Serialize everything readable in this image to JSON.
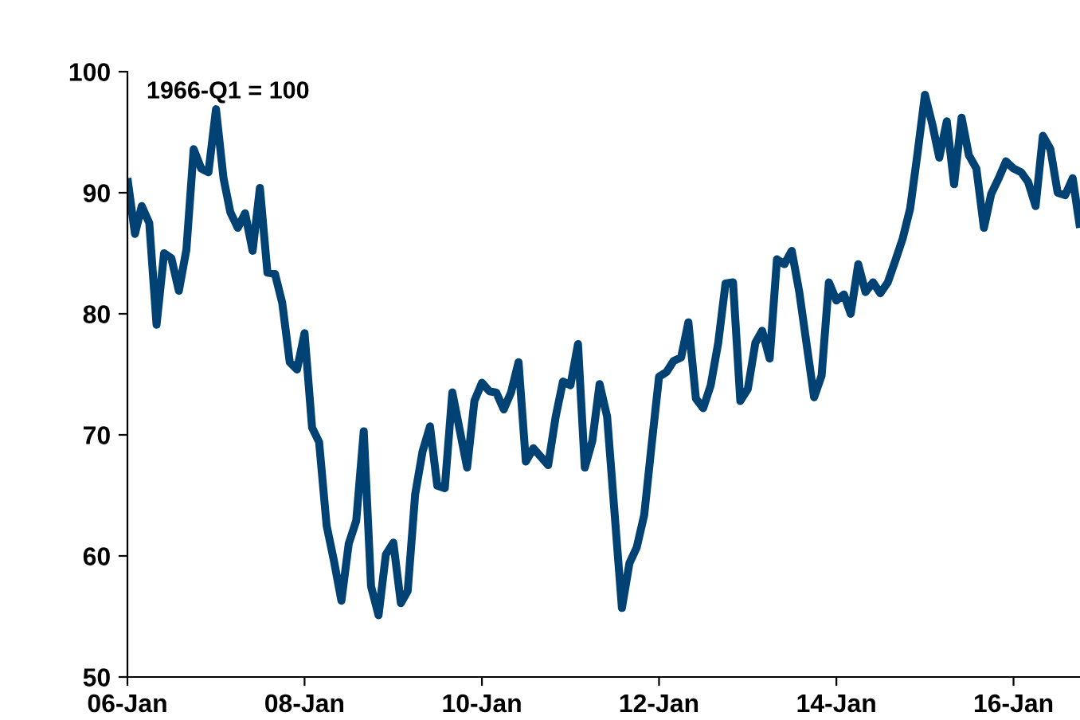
{
  "chart_data": {
    "type": "line",
    "annotations": [
      "1966-Q1 = 100"
    ],
    "x": [
      "2006-01",
      "2006-02",
      "2006-03",
      "2006-04",
      "2006-05",
      "2006-06",
      "2006-07",
      "2006-08",
      "2006-09",
      "2006-10",
      "2006-11",
      "2006-12",
      "2007-01",
      "2007-02",
      "2007-03",
      "2007-04",
      "2007-05",
      "2007-06",
      "2007-07",
      "2007-08",
      "2007-09",
      "2007-10",
      "2007-11",
      "2007-12",
      "2008-01",
      "2008-02",
      "2008-03",
      "2008-04",
      "2008-05",
      "2008-06",
      "2008-07",
      "2008-08",
      "2008-09",
      "2008-10",
      "2008-11",
      "2008-12",
      "2009-01",
      "2009-02",
      "2009-03",
      "2009-04",
      "2009-05",
      "2009-06",
      "2009-07",
      "2009-08",
      "2009-09",
      "2009-11",
      "2009-12",
      "2010-01",
      "2010-02",
      "2010-03",
      "2010-04",
      "2010-05",
      "2010-06",
      "2010-07",
      "2010-08",
      "2010-10",
      "2010-11",
      "2010-12",
      "2011-01",
      "2011-02",
      "2011-03",
      "2011-04",
      "2011-05",
      "2011-06",
      "2011-08",
      "2011-09",
      "2011-10",
      "2011-11",
      "2011-12",
      "2012-01",
      "2012-02",
      "2012-03",
      "2012-04",
      "2012-05",
      "2012-06",
      "2012-07",
      "2012-08",
      "2012-09",
      "2012-10",
      "2012-11",
      "2012-12",
      "2013-01",
      "2013-02",
      "2013-03",
      "2013-04",
      "2013-05",
      "2013-06",
      "2013-07",
      "2013-08",
      "2013-10",
      "2013-11",
      "2013-12",
      "2014-01",
      "2014-02",
      "2014-03",
      "2014-04",
      "2014-05",
      "2014-06",
      "2014-07",
      "2014-08",
      "2014-09",
      "2014-10",
      "2014-11",
      "2014-12",
      "2015-01",
      "2015-02",
      "2015-03",
      "2015-04",
      "2015-05",
      "2015-06",
      "2015-07",
      "2015-08",
      "2015-09",
      "2015-10",
      "2015-11",
      "2015-12",
      "2016-01",
      "2016-02",
      "2016-03",
      "2016-04",
      "2016-05",
      "2016-06",
      "2016-07",
      "2016-08",
      "2016-09",
      "2016-10"
    ],
    "series": [
      {
        "color": "#004274",
        "values": [
          91.2,
          86.6,
          88.9,
          87.5,
          79.1,
          85.0,
          84.6,
          81.9,
          85.3,
          93.6,
          92.0,
          91.7,
          96.9,
          91.2,
          88.4,
          87.1,
          88.3,
          85.2,
          90.4,
          83.4,
          83.3,
          80.9,
          76.0,
          75.4,
          78.4,
          70.6,
          69.4,
          62.5,
          59.6,
          56.3,
          61.0,
          62.9,
          70.3,
          57.5,
          55.1,
          60.1,
          61.1,
          56.1,
          57.1,
          65.1,
          68.6,
          70.7,
          65.8,
          65.6,
          73.5,
          67.3,
          72.8,
          74.3,
          73.6,
          73.5,
          72.1,
          73.5,
          76.0,
          67.8,
          68.9,
          67.5,
          71.5,
          74.4,
          74.1,
          77.5,
          67.3,
          69.5,
          74.2,
          71.5,
          55.7,
          59.4,
          60.7,
          63.4,
          69.1,
          74.8,
          75.2,
          76.1,
          76.4,
          79.3,
          73.0,
          72.2,
          74.1,
          77.6,
          82.5,
          82.6,
          72.8,
          73.8,
          77.6,
          78.6,
          76.3,
          84.5,
          84.1,
          85.2,
          81.8,
          73.1,
          74.9,
          82.6,
          81.1,
          81.6,
          80.0,
          84.1,
          81.8,
          82.6,
          81.7,
          82.6,
          84.4,
          86.2,
          88.7,
          93.2,
          98.1,
          95.6,
          92.9,
          95.9,
          90.7,
          96.2,
          93.1,
          92.0,
          87.1,
          89.9,
          91.2,
          92.6,
          92.0,
          91.7,
          90.9,
          88.9,
          94.7,
          93.6,
          90.0,
          89.8,
          91.2,
          87.1
        ]
      }
    ],
    "xlim": [
      "2006-01",
      "2016-10"
    ],
    "xticks": [
      {
        "value": "2006-01",
        "label": "06-Jan"
      },
      {
        "value": "2008-01",
        "label": "08-Jan"
      },
      {
        "value": "2010-01",
        "label": "10-Jan"
      },
      {
        "value": "2012-01",
        "label": "12-Jan"
      },
      {
        "value": "2014-01",
        "label": "14-Jan"
      },
      {
        "value": "2016-01",
        "label": "16-Jan"
      }
    ],
    "ylim": [
      50,
      100
    ],
    "yticks": [
      50,
      60,
      70,
      80,
      90,
      100
    ],
    "grid": false,
    "marker": "none",
    "line_style": "solid"
  }
}
